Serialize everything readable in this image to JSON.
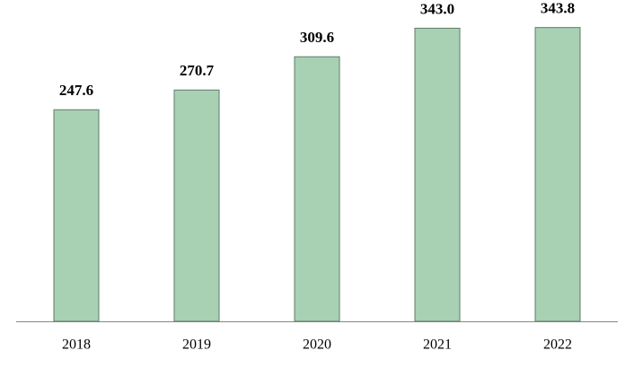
{
  "chart_data": {
    "type": "bar",
    "categories": [
      "2018",
      "2019",
      "2020",
      "2021",
      "2022"
    ],
    "values": [
      247.6,
      270.7,
      309.6,
      343.0,
      343.8
    ],
    "value_labels": [
      "247.6",
      "270.7",
      "309.6",
      "343.0",
      "343.8"
    ],
    "color": "#a8d0b3",
    "ylim": [
      0,
      355
    ]
  }
}
